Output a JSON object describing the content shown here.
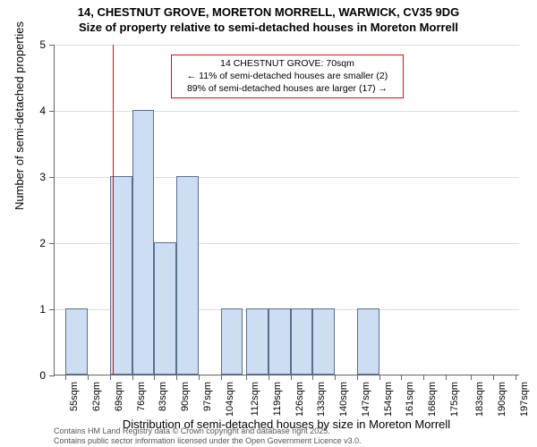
{
  "title": {
    "line1": "14, CHESTNUT GROVE, MORETON MORRELL, WARWICK, CV35 9DG",
    "line2": "Size of property relative to semi-detached houses in Moreton Morrell"
  },
  "chart": {
    "type": "histogram",
    "x_min": 51.5,
    "x_max": 198.5,
    "y_min": 0,
    "y_max": 5,
    "y_ticks": [
      0,
      1,
      2,
      3,
      4,
      5
    ],
    "x_ticks": [
      55,
      62,
      69,
      76,
      83,
      90,
      97,
      104,
      112,
      119,
      126,
      133,
      140,
      147,
      154,
      161,
      168,
      175,
      183,
      190,
      197
    ],
    "x_tick_unit": "sqm",
    "bin_width": 7,
    "bars": [
      {
        "x_start": 55,
        "value": 1
      },
      {
        "x_start": 62,
        "value": 0
      },
      {
        "x_start": 69,
        "value": 3
      },
      {
        "x_start": 76,
        "value": 4
      },
      {
        "x_start": 83,
        "value": 2
      },
      {
        "x_start": 90,
        "value": 3
      },
      {
        "x_start": 97,
        "value": 0
      },
      {
        "x_start": 104,
        "value": 1
      },
      {
        "x_start": 112,
        "value": 1
      },
      {
        "x_start": 119,
        "value": 1
      },
      {
        "x_start": 126,
        "value": 1
      },
      {
        "x_start": 133,
        "value": 1
      },
      {
        "x_start": 140,
        "value": 0
      },
      {
        "x_start": 147,
        "value": 1
      }
    ],
    "bar_fill": "#cdddf2",
    "bar_stroke": "#5b6e90",
    "background_color": "#ffffff",
    "grid_color": "#dddddd",
    "axis_color": "#666666",
    "marker": {
      "x_value": 70,
      "color": "#ff0000"
    },
    "annotation": {
      "line1": "14 CHESTNUT GROVE: 70sqm",
      "line2": "← 11% of semi-detached houses are smaller (2)",
      "line3": "89% of semi-detached houses are larger (17) →",
      "border_color": "#ff0000",
      "x_center": 125,
      "y_value": 4.55
    },
    "y_label": "Number of semi-detached properties",
    "x_label": "Distribution of semi-detached houses by size in Moreton Morrell"
  },
  "footer": {
    "line1": "Contains HM Land Registry data © Crown copyright and database right 2025.",
    "line2": "Contains public sector information licensed under the Open Government Licence v3.0."
  }
}
